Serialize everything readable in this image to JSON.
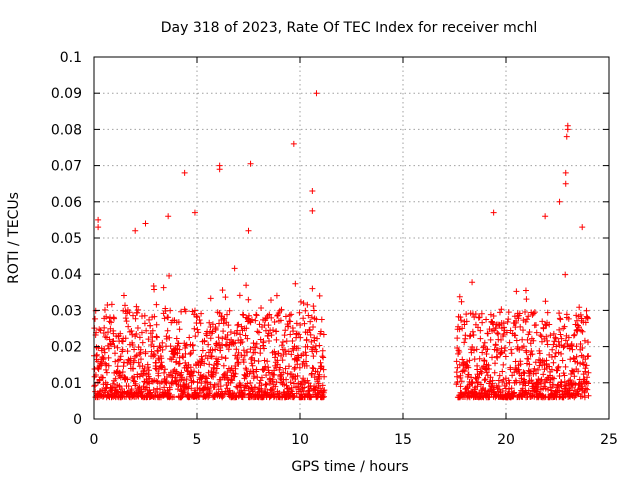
{
  "chart_data": {
    "type": "scatter",
    "title": "Day 318 of 2023, Rate Of TEC Index for receiver mchl",
    "xlabel": "GPS time / hours",
    "ylabel": "ROTI / TECUs",
    "xlim": [
      0,
      25
    ],
    "ylim": [
      0,
      0.1
    ],
    "xticks": [
      0,
      5,
      10,
      15,
      20,
      25
    ],
    "xtick_labels": [
      "0",
      "5",
      "10",
      "15",
      "20",
      "25"
    ],
    "yticks": [
      0,
      0.01,
      0.02,
      0.03,
      0.04,
      0.05,
      0.06,
      0.07,
      0.08,
      0.09,
      0.1
    ],
    "ytick_labels": [
      "0",
      "0.01",
      "0.02",
      "0.03",
      "0.04",
      "0.05",
      "0.06",
      "0.07",
      "0.08",
      "0.09",
      "0.1"
    ],
    "grid": true,
    "marker": "+",
    "color": "#ff0000",
    "series": [
      {
        "name": "ROTI",
        "segments": [
          {
            "x_start": 0.0,
            "x_end": 11.2
          },
          {
            "x_start": 17.6,
            "x_end": 24.0
          }
        ],
        "notable_points": [
          {
            "x": 0.2,
            "y": 0.055
          },
          {
            "x": 0.2,
            "y": 0.053
          },
          {
            "x": 2.0,
            "y": 0.052
          },
          {
            "x": 2.5,
            "y": 0.054
          },
          {
            "x": 3.6,
            "y": 0.056
          },
          {
            "x": 4.4,
            "y": 0.068
          },
          {
            "x": 4.9,
            "y": 0.057
          },
          {
            "x": 6.1,
            "y": 0.07
          },
          {
            "x": 6.1,
            "y": 0.069
          },
          {
            "x": 7.6,
            "y": 0.0705
          },
          {
            "x": 7.5,
            "y": 0.052
          },
          {
            "x": 9.7,
            "y": 0.076
          },
          {
            "x": 10.6,
            "y": 0.063
          },
          {
            "x": 10.6,
            "y": 0.0575
          },
          {
            "x": 10.8,
            "y": 0.09
          },
          {
            "x": 19.4,
            "y": 0.057
          },
          {
            "x": 21.9,
            "y": 0.056
          },
          {
            "x": 22.6,
            "y": 0.06
          },
          {
            "x": 22.9,
            "y": 0.068
          },
          {
            "x": 22.9,
            "y": 0.065
          },
          {
            "x": 22.95,
            "y": 0.078
          },
          {
            "x": 23.0,
            "y": 0.08
          },
          {
            "x": 23.0,
            "y": 0.081
          },
          {
            "x": 23.7,
            "y": 0.053
          }
        ]
      }
    ]
  }
}
